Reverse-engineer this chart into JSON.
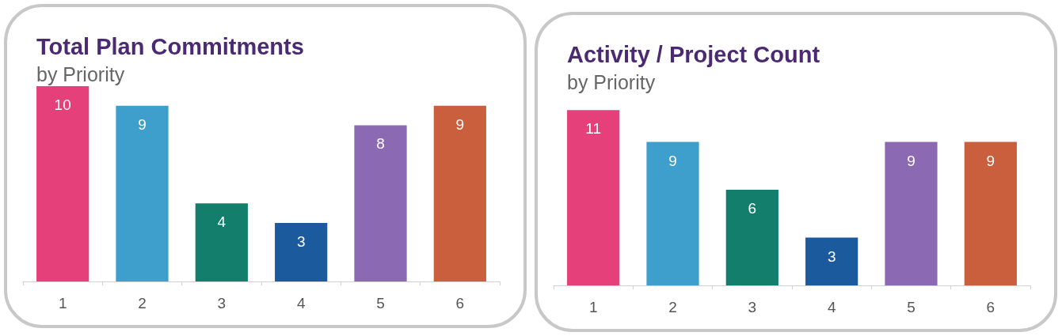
{
  "chart_data": [
    {
      "type": "bar",
      "title": "Total Plan Commitments",
      "subtitle": "by Priority",
      "categories": [
        "1",
        "2",
        "3",
        "4",
        "5",
        "6"
      ],
      "values": [
        10,
        9,
        4,
        3,
        8,
        9
      ],
      "colors": [
        "#e5407a",
        "#3f9fcc",
        "#137e6b",
        "#1b5b9d",
        "#8c6ab3",
        "#c95f3c"
      ],
      "data_labels": true
    },
    {
      "type": "bar",
      "title": "Activity / Project Count",
      "subtitle": "by Priority",
      "categories": [
        "1",
        "2",
        "3",
        "4",
        "5",
        "6"
      ],
      "values": [
        11,
        9,
        6,
        3,
        9,
        9
      ],
      "colors": [
        "#e5407a",
        "#3f9fcc",
        "#137e6b",
        "#1b5b9d",
        "#8c6ab3",
        "#c95f3c"
      ],
      "data_labels": true
    }
  ]
}
